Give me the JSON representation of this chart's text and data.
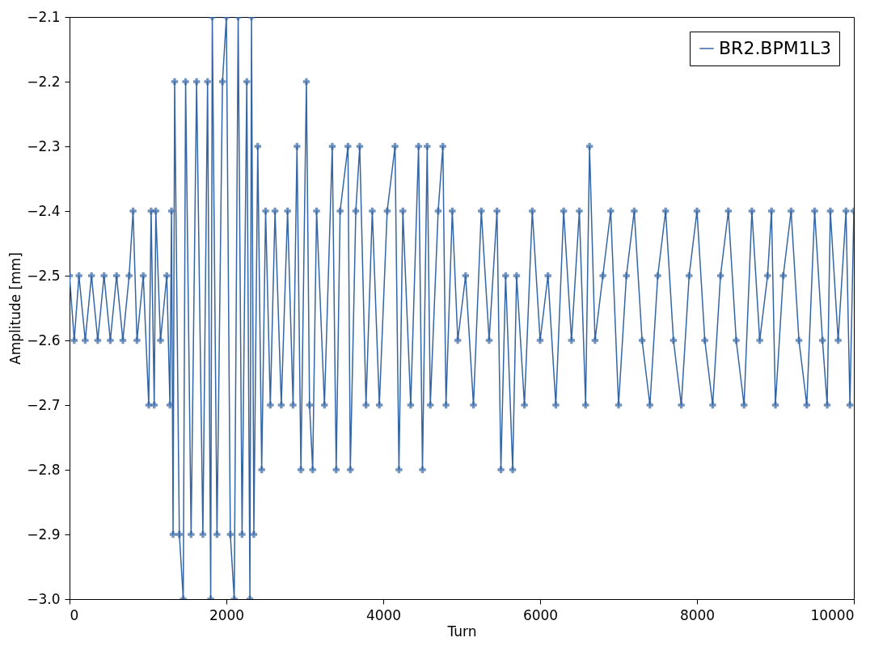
{
  "chart_data": {
    "type": "line",
    "xlabel": "Turn",
    "ylabel": "Amplitude [mm]",
    "series": [
      {
        "name": "BR2.BPM1L3",
        "color": "#3465a4",
        "x": [
          0,
          60,
          120,
          200,
          280,
          360,
          440,
          520,
          600,
          680,
          760,
          810,
          860,
          940,
          1010,
          1040,
          1080,
          1100,
          1160,
          1240,
          1280,
          1300,
          1320,
          1340,
          1400,
          1450,
          1480,
          1550,
          1620,
          1700,
          1760,
          1800,
          1820,
          1880,
          1950,
          2000,
          2050,
          2100,
          2150,
          2200,
          2260,
          2300,
          2320,
          2350,
          2400,
          2450,
          2500,
          2560,
          2620,
          2700,
          2780,
          2850,
          2900,
          2950,
          3020,
          3060,
          3100,
          3150,
          3250,
          3350,
          3400,
          3450,
          3550,
          3580,
          3650,
          3700,
          3780,
          3860,
          3950,
          4050,
          4150,
          4200,
          4250,
          4350,
          4450,
          4500,
          4560,
          4600,
          4700,
          4760,
          4800,
          4880,
          4950,
          5050,
          5150,
          5250,
          5350,
          5450,
          5500,
          5560,
          5650,
          5700,
          5800,
          5900,
          6000,
          6100,
          6200,
          6300,
          6400,
          6500,
          6580,
          6630,
          6700,
          6800,
          6900,
          7000,
          7100,
          7200,
          7300,
          7400,
          7500,
          7600,
          7700,
          7800,
          7900,
          8000,
          8100,
          8200,
          8300,
          8400,
          8500,
          8600,
          8700,
          8800,
          8900,
          8950,
          9000,
          9100,
          9200,
          9300,
          9400,
          9500,
          9600,
          9660,
          9700,
          9800,
          9900,
          9950,
          10000
        ],
        "values": [
          -2.5,
          -2.6,
          -2.5,
          -2.6,
          -2.5,
          -2.6,
          -2.5,
          -2.6,
          -2.5,
          -2.6,
          -2.5,
          -2.4,
          -2.6,
          -2.5,
          -2.7,
          -2.4,
          -2.7,
          -2.4,
          -2.6,
          -2.5,
          -2.7,
          -2.4,
          -2.9,
          -2.2,
          -2.9,
          -3.0,
          -2.2,
          -2.9,
          -2.2,
          -2.9,
          -2.2,
          -3.0,
          -2.1,
          -2.9,
          -2.2,
          -2.1,
          -2.9,
          -3.0,
          -2.1,
          -2.9,
          -2.2,
          -3.0,
          -2.1,
          -2.9,
          -2.3,
          -2.8,
          -2.4,
          -2.7,
          -2.4,
          -2.7,
          -2.4,
          -2.7,
          -2.3,
          -2.8,
          -2.2,
          -2.7,
          -2.8,
          -2.4,
          -2.7,
          -2.3,
          -2.8,
          -2.4,
          -2.3,
          -2.8,
          -2.4,
          -2.3,
          -2.7,
          -2.4,
          -2.7,
          -2.4,
          -2.3,
          -2.8,
          -2.4,
          -2.7,
          -2.3,
          -2.8,
          -2.3,
          -2.7,
          -2.4,
          -2.3,
          -2.7,
          -2.4,
          -2.6,
          -2.5,
          -2.7,
          -2.4,
          -2.6,
          -2.4,
          -2.8,
          -2.5,
          -2.8,
          -2.5,
          -2.7,
          -2.4,
          -2.6,
          -2.5,
          -2.7,
          -2.4,
          -2.6,
          -2.4,
          -2.7,
          -2.3,
          -2.6,
          -2.5,
          -2.4,
          -2.7,
          -2.5,
          -2.4,
          -2.6,
          -2.7,
          -2.5,
          -2.4,
          -2.6,
          -2.7,
          -2.5,
          -2.4,
          -2.6,
          -2.7,
          -2.5,
          -2.4,
          -2.6,
          -2.7,
          -2.4,
          -2.6,
          -2.5,
          -2.4,
          -2.7,
          -2.5,
          -2.4,
          -2.6,
          -2.7,
          -2.4,
          -2.6,
          -2.7,
          -2.4,
          -2.6,
          -2.4,
          -2.7,
          -2.4
        ]
      }
    ],
    "xlim": [
      0,
      10000
    ],
    "xticks": [
      0,
      2000,
      4000,
      6000,
      8000,
      10000
    ],
    "ylim": [
      -3.0,
      -2.1
    ],
    "yticks": [
      {
        "value": -3.0,
        "label": "−3.0"
      },
      {
        "value": -2.9,
        "label": "−2.9"
      },
      {
        "value": -2.8,
        "label": "−2.8"
      },
      {
        "value": -2.7,
        "label": "−2.7"
      },
      {
        "value": -2.6,
        "label": "−2.6"
      },
      {
        "value": -2.5,
        "label": "−2.5"
      },
      {
        "value": -2.4,
        "label": "−2.4"
      },
      {
        "value": -2.3,
        "label": "−2.3"
      },
      {
        "value": -2.2,
        "label": "−2.2"
      },
      {
        "value": -2.1,
        "label": "−2.1"
      }
    ],
    "grid": false,
    "legend": "top right",
    "marker": "cross",
    "line_style": "solid"
  }
}
